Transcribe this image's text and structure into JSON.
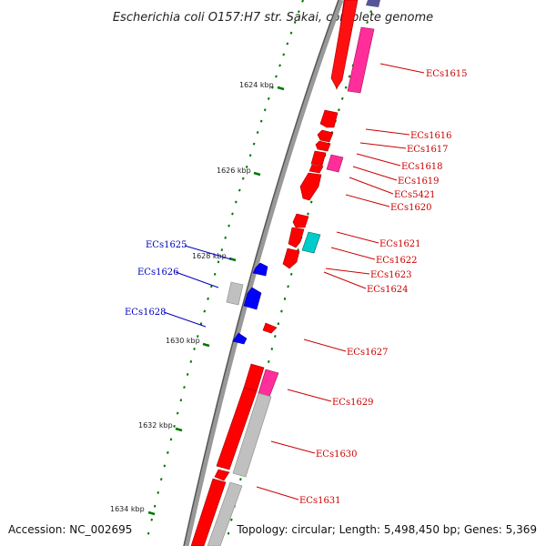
{
  "title": "Escherichia coli O157:H7 str. Sakai, complete genome",
  "footer": {
    "accession": "Accession: NC_002695",
    "summary": "Topology: circular; Length: 5,498,450 bp; Genes: 5,369"
  },
  "colors": {
    "forward_gene": "#ff0000",
    "reverse_gene": "#0000ff",
    "pink_feature": "#ff2e9a",
    "cyan_feature": "#00cccc",
    "grey_feature": "#c0c0c0",
    "tick": "#007700",
    "backbone": "#666666"
  },
  "scale_labels": [
    "1624 kbp",
    "1626 kbp",
    "1628 kbp",
    "1630 kbp",
    "1632 kbp",
    "1634 kbp"
  ],
  "labels_right": [
    "ECs1615",
    "ECs1616",
    "ECs1617",
    "ECs1618",
    "ECs1619",
    "ECs5421",
    "ECs1620",
    "ECs1621",
    "ECs1622",
    "ECs1623",
    "ECs1624",
    "ECs1627",
    "ECs1629",
    "ECs1630",
    "ECs1631"
  ],
  "labels_left": [
    "ECs1625",
    "ECs1626",
    "ECs1628"
  ]
}
